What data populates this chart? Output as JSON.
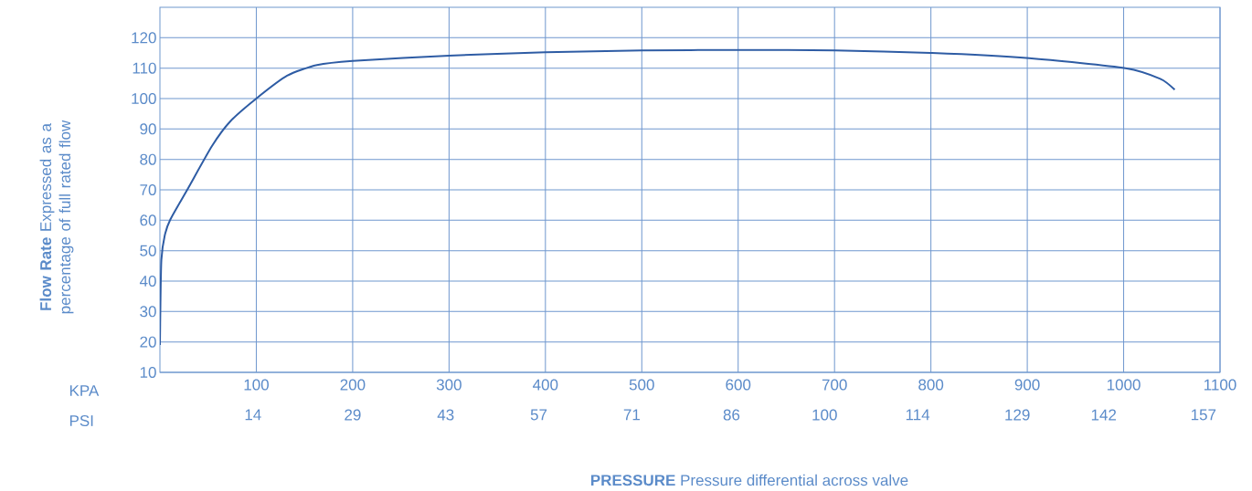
{
  "chart_data": {
    "type": "line",
    "xlabel": "**PRESSURE** Pressure differential across valve",
    "ylabel": "**Flow Rate** Expressed as a percentage of full rated flow",
    "annotations": [
      "KPA",
      "PSI"
    ],
    "x": [
      0,
      0.5,
      1.5,
      5,
      11,
      29,
      54,
      73,
      100,
      132,
      163,
      200,
      300,
      400,
      500,
      601,
      701,
      801,
      902,
      1002,
      1038,
      1053
    ],
    "values": [
      19,
      32,
      47,
      55,
      60.4,
      70.4,
      84.4,
      92.5,
      100,
      107.5,
      111,
      112.4,
      114.1,
      115.2,
      115.8,
      116,
      115.8,
      115,
      113.3,
      110,
      106.5,
      102.9
    ],
    "color": "#2e5ca4",
    "xlim": [
      0,
      1100
    ],
    "ylim": [
      10,
      130
    ],
    "xticks": [
      100,
      200,
      300,
      400,
      500,
      600,
      700,
      800,
      900,
      1000,
      1100
    ],
    "yticks": [
      10,
      20,
      30,
      40,
      50,
      60,
      70,
      80,
      90,
      100,
      110,
      120
    ],
    "x2lim": [
      0,
      159.5
    ],
    "x2ticks": [
      14,
      29,
      43,
      57,
      71,
      86,
      100,
      114,
      129,
      142,
      157
    ],
    "grid": true
  }
}
